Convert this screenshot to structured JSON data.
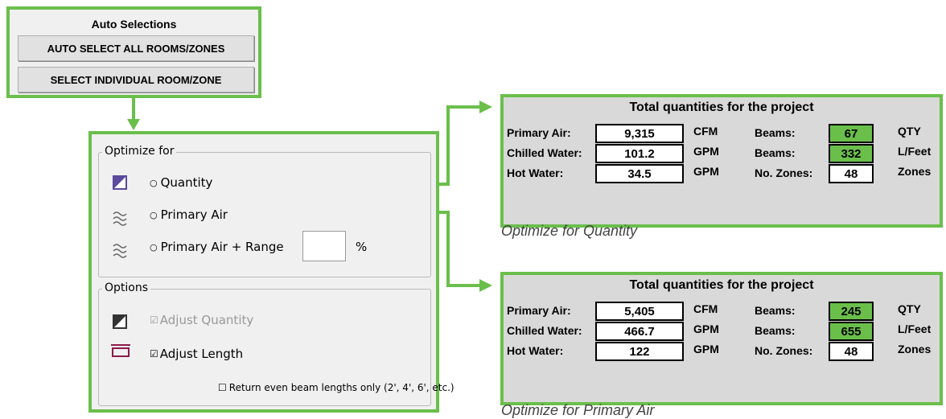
{
  "auto_selections": {
    "title": "Auto Selections",
    "buttons": [
      "AUTO SELECT ALL ROOMS/ZONES",
      "SELECT INDIVIDUAL ROOM/ZONE"
    ]
  },
  "optimize_for": {
    "title": "Optimize for",
    "options": [
      "Quantity",
      "Primary Air",
      "Primary Air + Range"
    ],
    "range_unit": "%"
  },
  "options": {
    "title": "Options",
    "items": [
      "Adjust Quantity",
      "Adjust Length"
    ],
    "sub_option": "Return even beam lengths only (2', 4', 6', etc.)"
  },
  "results": [
    {
      "title": "Total quantities for the project",
      "caption": "Optimize for Quantity",
      "rows": [
        {
          "label": "Primary Air:",
          "value": "9,315",
          "unit": "CFM",
          "label2": "Beams:",
          "value2": "67",
          "unit2": "QTY"
        },
        {
          "label": "Chilled Water:",
          "value": "101.2",
          "unit": "GPM",
          "label2": "Beams:",
          "value2": "332",
          "unit2": "L/Feet"
        },
        {
          "label": "Hot Water:",
          "value": "34.5",
          "unit": "GPM",
          "label2": "No. Zones:",
          "value2": "48",
          "unit2": "Zones"
        }
      ]
    },
    {
      "title": "Total quantities for the project",
      "caption": "Optimize for Primary Air",
      "rows": [
        {
          "label": "Primary Air:",
          "value": "5,405",
          "unit": "CFM",
          "label2": "Beams:",
          "value2": "245",
          "unit2": "QTY"
        },
        {
          "label": "Chilled Water:",
          "value": "466.7",
          "unit": "GPM",
          "label2": "Beams:",
          "value2": "655",
          "unit2": "L/Feet"
        },
        {
          "label": "Hot Water:",
          "value": "122",
          "unit": "GPM",
          "label2": "No. Zones:",
          "value2": "48",
          "unit2": "Zones"
        }
      ]
    }
  ]
}
